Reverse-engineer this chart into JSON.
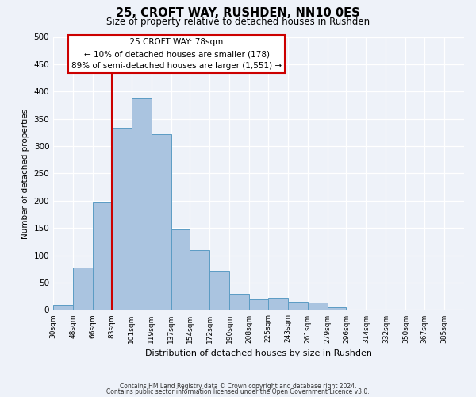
{
  "title": "25, CROFT WAY, RUSHDEN, NN10 0ES",
  "subtitle": "Size of property relative to detached houses in Rushden",
  "xlabel": "Distribution of detached houses by size in Rushden",
  "ylabel": "Number of detached properties",
  "bin_labels": [
    "30sqm",
    "48sqm",
    "66sqm",
    "83sqm",
    "101sqm",
    "119sqm",
    "137sqm",
    "154sqm",
    "172sqm",
    "190sqm",
    "208sqm",
    "225sqm",
    "243sqm",
    "261sqm",
    "279sqm",
    "296sqm",
    "314sqm",
    "332sqm",
    "350sqm",
    "367sqm",
    "385sqm"
  ],
  "bar_heights": [
    10,
    78,
    197,
    333,
    388,
    322,
    148,
    109,
    72,
    30,
    20,
    22,
    15,
    14,
    5,
    1,
    1,
    0,
    0,
    0,
    1
  ],
  "bar_color": "#aac4e0",
  "bar_edge_color": "#5b9cc4",
  "vline_color": "#cc0000",
  "annotation_title": "25 CROFT WAY: 78sqm",
  "annotation_line1": "← 10% of detached houses are smaller (178)",
  "annotation_line2": "89% of semi-detached houses are larger (1,551) →",
  "annotation_box_color": "#ffffff",
  "annotation_box_edge": "#cc0000",
  "footer1": "Contains HM Land Registry data © Crown copyright and database right 2024.",
  "footer2": "Contains public sector information licensed under the Open Government Licence v3.0.",
  "ylim": [
    0,
    500
  ],
  "background_color": "#eef2f9",
  "grid_color": "#ffffff"
}
